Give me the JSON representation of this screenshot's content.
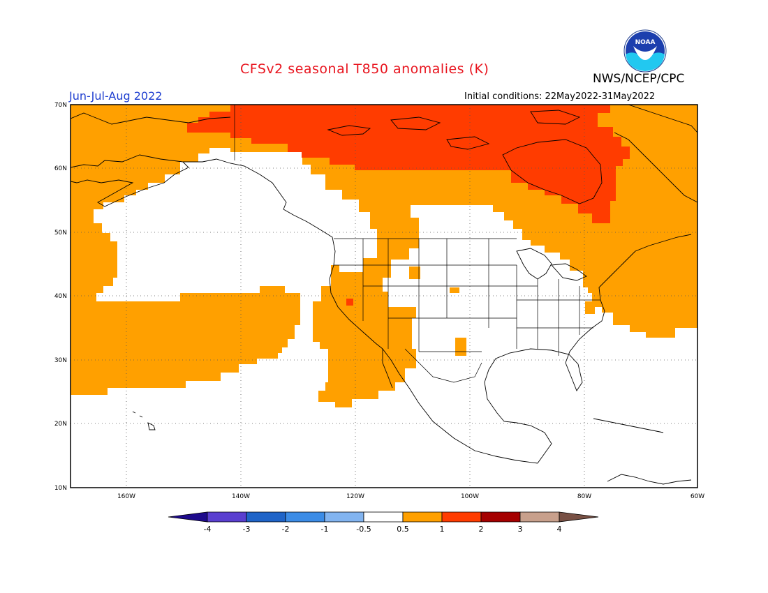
{
  "header": {
    "title": "CFSv2 seasonal T850 anomalies (K)",
    "season": "Jun-Jul-Aug 2022",
    "initial_conditions": "Initial conditions: 22May2022-31May2022",
    "agency": "NWS/NCEP/CPC",
    "logo_text": "NOAA"
  },
  "map": {
    "projection": "lat-lon",
    "lon_range": [
      -172,
      -60
    ],
    "lat_range": [
      10,
      70
    ],
    "lat_labels": [
      "70N",
      "60N",
      "50N",
      "40N",
      "30N",
      "20N",
      "10N"
    ],
    "lon_labels": [
      "160W",
      "140W",
      "120W",
      "100W",
      "80W",
      "60W"
    ]
  },
  "colorbar": {
    "labels": [
      "-4",
      "-3",
      "-2",
      "-1",
      "-0.5",
      "0.5",
      "1",
      "2",
      "3",
      "4"
    ],
    "colors": [
      "#1e0a8c",
      "#5a3fd0",
      "#1f64c8",
      "#3c8ce6",
      "#82b4f0",
      "#ffffff",
      "#ffa000",
      "#ff3c00",
      "#a50000",
      "#c8a08c",
      "#785044"
    ]
  },
  "anomaly_colors": {
    "0.5-1": "#ffa000",
    "1-2": "#ff3c00"
  }
}
